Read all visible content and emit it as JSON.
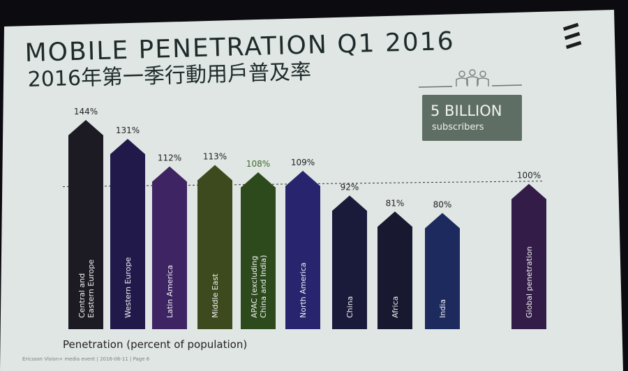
{
  "slide": {
    "title": "MOBILE PENETRATION Q1 2016",
    "subtitle": "2016年第一季行動用戶普及率",
    "footer": "Ericsson Vision+ media event | 2016-06-11 | Page 6",
    "axis_note": "Penetration (percent of population)"
  },
  "callout": {
    "headline": "5 BILLION",
    "caption": "subscribers",
    "icon": "people-group-icon"
  },
  "logo": {
    "icon": "ericsson-logo-icon"
  },
  "colors": {
    "background": "#dfe6e3",
    "callout_box": "#5f6e64",
    "reference_line": "#333333"
  },
  "chart_data": {
    "type": "bar",
    "categories": [
      "Central and Eastern Europe",
      "Western Europe",
      "Latin America",
      "Middle East",
      "APAC (excluding China and India)",
      "North America",
      "China",
      "Africa",
      "India",
      "Global penetration"
    ],
    "values": [
      144,
      131,
      112,
      113,
      108,
      109,
      92,
      81,
      80,
      100
    ],
    "value_labels": [
      "144%",
      "131%",
      "112%",
      "113%",
      "108%",
      "109%",
      "92%",
      "81%",
      "80%",
      "100%"
    ],
    "bar_colors": [
      "#1c1a22",
      "#21194a",
      "#3e2462",
      "#3c4a1e",
      "#2c4a1c",
      "#28256e",
      "#1a1a3a",
      "#181830",
      "#1d2a5e",
      "#341c48"
    ],
    "label_colors": [
      "#222222",
      "#222222",
      "#222222",
      "#222222",
      "#3f6a2a",
      "#222222",
      "#222222",
      "#222222",
      "#222222",
      "#222222"
    ],
    "reference_line": 100,
    "ylim": [
      0,
      150
    ],
    "xlabel": "Penetration (percent of population)",
    "ylabel": ""
  }
}
